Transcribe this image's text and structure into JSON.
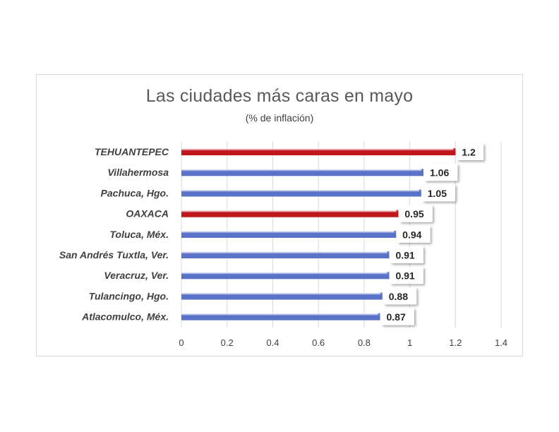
{
  "chart_data": {
    "type": "bar",
    "orientation": "horizontal",
    "title": "Las ciudades más caras en mayo",
    "subtitle": "(% de inflación)",
    "categories": [
      "TEHUANTEPEC",
      "Villahermosa",
      "Pachuca, Hgo.",
      "OAXACA",
      "Toluca, Méx.",
      "San Andrés Tuxtla, Ver.",
      "Veracruz, Ver.",
      "Tulancingo, Hgo.",
      "Atlacomulco, Méx."
    ],
    "values": [
      1.2,
      1.06,
      1.05,
      0.95,
      0.94,
      0.91,
      0.91,
      0.88,
      0.87
    ],
    "value_labels": [
      "1.2",
      "1.06",
      "1.05",
      "0.95",
      "0.94",
      "0.91",
      "0.91",
      "0.88",
      "0.87"
    ],
    "bar_colors": [
      "#c0171c",
      "#5a72c7",
      "#5a72c7",
      "#c0171c",
      "#5a72c7",
      "#5a72c7",
      "#5a72c7",
      "#5a72c7",
      "#5a72c7"
    ],
    "xlim": [
      0,
      1.4
    ],
    "xticks": [
      0,
      0.2,
      0.4,
      0.6,
      0.8,
      1,
      1.2,
      1.4
    ],
    "xtick_labels": [
      "0",
      "0.2",
      "0.4",
      "0.6",
      "0.8",
      "1",
      "1.2",
      "1.4"
    ],
    "xlabel": "",
    "ylabel": "",
    "grid": "vertical",
    "legend": "none"
  },
  "colors": {
    "highlight": "#c0171c",
    "default": "#5a72c7",
    "gridline": "#d9d9d9",
    "frame": "#d9d9d9"
  }
}
